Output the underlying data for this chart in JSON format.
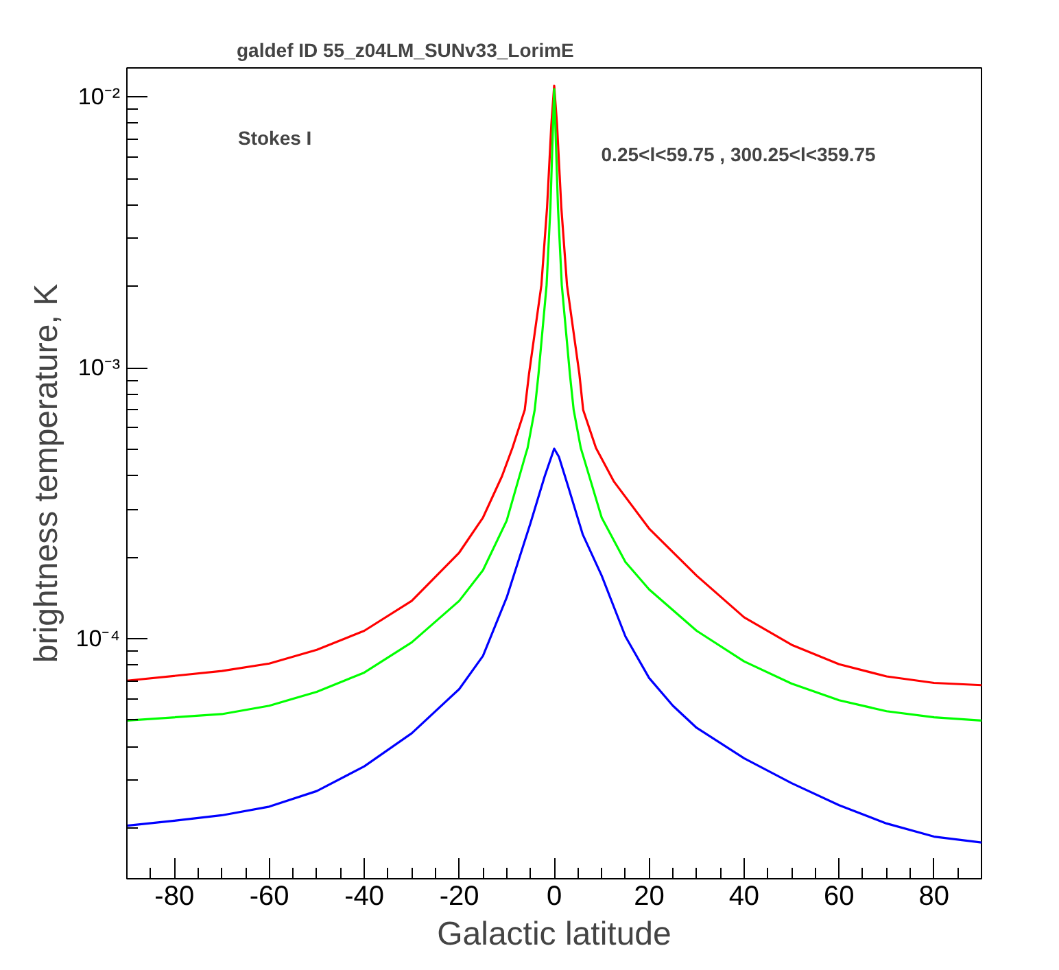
{
  "chart_data": {
    "type": "line",
    "title": "galdef ID 55_z04LM_SUNv33_LorimE",
    "xlabel": "Galactic latitude",
    "ylabel": "brightness temperature, K",
    "annotations": [
      "Stokes I",
      "0.25<l<59.75 , 300.25<l<359.75"
    ],
    "log": "y",
    "grid": false,
    "marker": "none",
    "line_style": "solid",
    "xlim": [
      -90,
      90
    ],
    "ylim": [
      1.3e-05,
      0.0128
    ],
    "xticks": [
      -80,
      -60,
      -40,
      -20,
      0,
      20,
      40,
      60,
      80,
      {
        "value": -90,
        "label": null
      },
      {
        "value": -85,
        "label": null
      },
      {
        "value": -75,
        "label": null
      },
      {
        "value": -70,
        "label": null
      },
      {
        "value": -65,
        "label": null
      },
      {
        "value": -55,
        "label": null
      },
      {
        "value": -50,
        "label": null
      },
      {
        "value": -45,
        "label": null
      },
      {
        "value": -35,
        "label": null
      },
      {
        "value": -30,
        "label": null
      },
      {
        "value": -25,
        "label": null
      },
      {
        "value": -15,
        "label": null
      },
      {
        "value": -10,
        "label": null
      },
      {
        "value": -5,
        "label": null
      },
      {
        "value": 5,
        "label": null
      },
      {
        "value": 10,
        "label": null
      },
      {
        "value": 15,
        "label": null
      },
      {
        "value": 25,
        "label": null
      },
      {
        "value": 30,
        "label": null
      },
      {
        "value": 35,
        "label": null
      },
      {
        "value": 45,
        "label": null
      },
      {
        "value": 50,
        "label": null
      },
      {
        "value": 55,
        "label": null
      },
      {
        "value": 65,
        "label": null
      },
      {
        "value": 70,
        "label": null
      },
      {
        "value": 75,
        "label": null
      },
      {
        "value": 85,
        "label": null
      },
      {
        "value": 90,
        "label": null
      }
    ],
    "yticks": [
      {
        "value": 0.01,
        "label": "10⁻²"
      },
      {
        "value": 0.001,
        "label": "10⁻³"
      },
      {
        "value": 0.0001,
        "label": "10⁻⁴"
      },
      {
        "value": 2e-05,
        "label": null
      },
      {
        "value": 3e-05,
        "label": null
      },
      {
        "value": 4e-05,
        "label": null
      },
      {
        "value": 5e-05,
        "label": null
      },
      {
        "value": 6e-05,
        "label": null
      },
      {
        "value": 7e-05,
        "label": null
      },
      {
        "value": 8e-05,
        "label": null
      },
      {
        "value": 9e-05,
        "label": null
      },
      {
        "value": 0.0002,
        "label": null
      },
      {
        "value": 0.0003,
        "label": null
      },
      {
        "value": 0.0004,
        "label": null
      },
      {
        "value": 0.0005,
        "label": null
      },
      {
        "value": 0.0006,
        "label": null
      },
      {
        "value": 0.0007,
        "label": null
      },
      {
        "value": 0.0008,
        "label": null
      },
      {
        "value": 0.0009,
        "label": null
      },
      {
        "value": 0.002,
        "label": null
      },
      {
        "value": 0.003,
        "label": null
      },
      {
        "value": 0.004,
        "label": null
      },
      {
        "value": 0.005,
        "label": null
      },
      {
        "value": 0.006,
        "label": null
      },
      {
        "value": 0.007,
        "label": null
      },
      {
        "value": 0.008,
        "label": null
      },
      {
        "value": 0.009,
        "label": null
      }
    ],
    "series": [
      {
        "color": "#ff0000",
        "x": [
          -90,
          -70,
          -60,
          -50,
          -40,
          -30,
          -20,
          -15,
          -11,
          -8.8,
          -6.2,
          -5.3,
          -2.7,
          -1.5,
          -0.6,
          0,
          0.6,
          1.5,
          2.7,
          5.3,
          6.1,
          8.8,
          12.6,
          20,
          30,
          40,
          50,
          60,
          70,
          80,
          90
        ],
        "values": [
          7e-05,
          7.6e-05,
          8.1e-05,
          9.1e-05,
          0.000107,
          0.000138,
          0.000208,
          0.00028,
          0.000398,
          0.000506,
          0.0007,
          0.00095,
          0.00202,
          0.00391,
          0.0079,
          0.011,
          0.0079,
          0.00391,
          0.00202,
          0.00095,
          0.0007,
          0.000506,
          0.00038,
          0.000255,
          0.000171,
          0.00012,
          9.5e-05,
          8.05e-05,
          7.26e-05,
          6.87e-05,
          6.74e-05
        ]
      },
      {
        "color": "#00ff00",
        "x": [
          -90,
          -70,
          -60,
          -50,
          -40,
          -30,
          -20,
          -15,
          -10,
          -6,
          -5.6,
          -4.1,
          -3.3,
          -1.6,
          -0.8,
          0,
          0.8,
          1.6,
          3.3,
          4.1,
          5.6,
          6,
          10,
          15,
          20,
          30,
          40,
          50,
          60,
          70,
          80,
          90
        ],
        "values": [
          4.99e-05,
          5.27e-05,
          5.66e-05,
          6.37e-05,
          7.5e-05,
          9.7e-05,
          0.000138,
          0.000179,
          0.000273,
          0.00048,
          0.000506,
          0.0007,
          0.00095,
          0.00202,
          0.0039,
          0.0107,
          0.0039,
          0.00202,
          0.00095,
          0.0007,
          0.000506,
          0.00048,
          0.00028,
          0.000192,
          0.000152,
          0.000107,
          8.25e-05,
          6.83e-05,
          5.93e-05,
          5.4e-05,
          5.13e-05,
          4.99e-05
        ]
      },
      {
        "color": "#0000ff",
        "x": [
          -90,
          -80,
          -70,
          -60,
          -50,
          -40,
          -30,
          -20,
          -15,
          -10,
          -5,
          -2,
          0,
          1,
          3,
          6,
          10,
          15,
          20,
          25,
          30,
          40,
          50,
          60,
          70,
          80,
          90
        ],
        "values": [
          2.04e-05,
          2.13e-05,
          2.23e-05,
          2.4e-05,
          2.74e-05,
          3.38e-05,
          4.48e-05,
          6.52e-05,
          8.64e-05,
          0.000142,
          0.000267,
          0.000398,
          0.000503,
          0.000469,
          0.000362,
          0.000243,
          0.000171,
          0.000102,
          7.16e-05,
          5.66e-05,
          4.69e-05,
          3.62e-05,
          2.93e-05,
          2.43e-05,
          2.08e-05,
          1.86e-05,
          1.77e-05
        ]
      }
    ]
  }
}
